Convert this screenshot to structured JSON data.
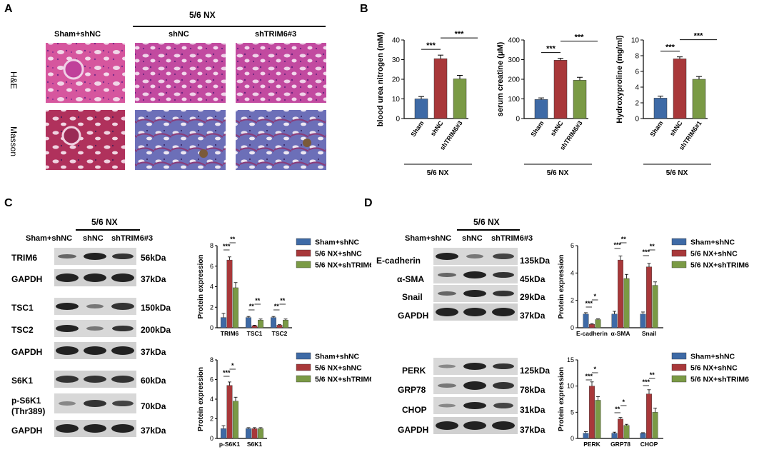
{
  "panels": {
    "A": {
      "letter": "A",
      "group_header": "5/6 NX",
      "columns": [
        "Sham+shNC",
        "shNC",
        "shTRIM6#3"
      ],
      "rows": [
        "H&E",
        "Masson"
      ]
    },
    "B": {
      "letter": "B",
      "sig": "***",
      "group_label": "5/6 NX"
    },
    "C": {
      "letter": "C",
      "group_header": "5/6 NX",
      "columns": [
        "Sham+shNC",
        "shNC",
        "shTRIM6#3"
      ],
      "blots_top": [
        {
          "name": "TRIM6",
          "kda": "56kDa"
        },
        {
          "name": "GAPDH",
          "kda": "37kDa"
        },
        {
          "name": "TSC1",
          "kda": "150kDa"
        },
        {
          "name": "TSC2",
          "kda": "200kDa"
        },
        {
          "name": "GAPDH",
          "kda": "37kDa"
        }
      ],
      "blots_bottom": [
        {
          "name": "S6K1",
          "kda": "60kDa"
        },
        {
          "name": "p-S6K1",
          "name2": "(Thr389)",
          "kda": "70kDa"
        },
        {
          "name": "GAPDH",
          "kda": "37kDa"
        }
      ]
    },
    "D": {
      "letter": "D",
      "group_header": "5/6 NX",
      "columns": [
        "Sham+shNC",
        "shNC",
        "shTRIM6#3"
      ],
      "blots_top": [
        {
          "name": "E-cadherin",
          "kda": "135kDa"
        },
        {
          "name": "α-SMA",
          "kda": "45kDa"
        },
        {
          "name": "Snail",
          "kda": "29kDa"
        },
        {
          "name": "GAPDH",
          "kda": "37kDa"
        }
      ],
      "blots_bottom": [
        {
          "name": "PERK",
          "kda": "125kDa"
        },
        {
          "name": "GRP78",
          "kda": "78kDa"
        },
        {
          "name": "CHOP",
          "kda": "31kDa"
        },
        {
          "name": "GAPDH",
          "kda": "37kDa"
        }
      ]
    }
  },
  "colors": {
    "blue": "#3e6aa6",
    "red": "#a8383a",
    "green": "#7a9a45"
  },
  "legend3": [
    "Sham+shNC",
    "5/6 NX+shNC",
    "5/6 NX+shTRIM6"
  ],
  "chart_data": [
    {
      "id": "b1",
      "type": "bar",
      "categories": [
        "Sham",
        "shNC",
        "shTRIM6#3"
      ],
      "values": [
        10,
        30.5,
        20.2
      ],
      "errors": [
        1.2,
        1.8,
        1.8
      ],
      "ylabel": "blood urea nitrogen (mM)",
      "ylim": [
        0,
        40
      ],
      "yticks": [
        "0",
        "10",
        "20",
        "30",
        "40"
      ],
      "group_label": "5/6 NX"
    },
    {
      "id": "b2",
      "type": "bar",
      "categories": [
        "Sham",
        "shNC",
        "shTRIM6#3"
      ],
      "values": [
        97,
        297,
        195
      ],
      "errors": [
        8,
        10,
        15
      ],
      "ylabel": "serum creatine (μM)",
      "ylim": [
        0,
        400
      ],
      "yticks": [
        "0",
        "100",
        "200",
        "300",
        "400"
      ],
      "group_label": "5/6 NX"
    },
    {
      "id": "b3",
      "type": "bar",
      "categories": [
        "Sham",
        "shNC",
        "shTRIM6#1"
      ],
      "values": [
        2.6,
        7.6,
        5.0
      ],
      "errors": [
        0.25,
        0.25,
        0.35
      ],
      "ylabel": "Hydroxyproline (mg/ml)",
      "ylim": [
        0,
        10
      ],
      "yticks": [
        "0",
        "2",
        "4",
        "6",
        "8",
        "10"
      ],
      "group_label": "5/6 NX"
    },
    {
      "id": "c1",
      "type": "bar",
      "categories": [
        "TRIM6",
        "TSC1",
        "TSC2"
      ],
      "ylabel": "Protein expression",
      "ylim": [
        0,
        8
      ],
      "yticks": [
        "0",
        "2",
        "4",
        "6",
        "8"
      ],
      "series": [
        {
          "name": "Sham+shNC",
          "values": [
            1.0,
            1.0,
            1.0
          ],
          "errors": [
            0.4,
            0.1,
            0.1
          ]
        },
        {
          "name": "5/6 NX+shNC",
          "values": [
            6.6,
            0.2,
            0.25
          ],
          "errors": [
            0.3,
            0.05,
            0.05
          ]
        },
        {
          "name": "5/6 NX+shTRIM6",
          "values": [
            3.9,
            0.75,
            0.75
          ],
          "errors": [
            0.5,
            0.1,
            0.1
          ]
        }
      ]
    },
    {
      "id": "c2",
      "type": "bar",
      "categories": [
        "p-S6K1",
        "S6K1"
      ],
      "ylabel": "Protein expression",
      "ylim": [
        0,
        8
      ],
      "yticks": [
        "0",
        "2",
        "4",
        "6",
        "8"
      ],
      "series": [
        {
          "name": "Sham+shNC",
          "values": [
            1.0,
            1.0
          ],
          "errors": [
            0.3,
            0.1
          ]
        },
        {
          "name": "5/6 NX+shNC",
          "values": [
            5.4,
            1.0
          ],
          "errors": [
            0.35,
            0.1
          ]
        },
        {
          "name": "5/6 NX+shTRIM6",
          "values": [
            3.8,
            1.0
          ],
          "errors": [
            0.4,
            0.1
          ]
        }
      ]
    },
    {
      "id": "d1",
      "type": "bar",
      "categories": [
        "E-cadherin",
        "α-SMA",
        "Snail"
      ],
      "ylabel": "Protein expression",
      "ylim": [
        0,
        6
      ],
      "yticks": [
        "0",
        "2",
        "4",
        "6"
      ],
      "series": [
        {
          "name": "Sham+shNC",
          "values": [
            1.0,
            1.0,
            1.0
          ],
          "errors": [
            0.1,
            0.2,
            0.15
          ]
        },
        {
          "name": "5/6 NX+shNC",
          "values": [
            0.25,
            4.95,
            4.45
          ],
          "errors": [
            0.05,
            0.3,
            0.25
          ]
        },
        {
          "name": "5/6 NX+shTRIM6",
          "values": [
            0.6,
            3.6,
            3.1
          ],
          "errors": [
            0.05,
            0.3,
            0.25
          ]
        }
      ]
    },
    {
      "id": "d2",
      "type": "bar",
      "categories": [
        "PERK",
        "GRP78",
        "CHOP"
      ],
      "ylabel": "Protein expression",
      "ylim": [
        0,
        15
      ],
      "yticks": [
        "0",
        "5",
        "10",
        "15"
      ],
      "series": [
        {
          "name": "Sham+shNC",
          "values": [
            1.0,
            1.0,
            1.0
          ],
          "errors": [
            0.3,
            0.2,
            0.1
          ]
        },
        {
          "name": "5/6 NX+shNC",
          "values": [
            10.0,
            3.7,
            8.5
          ],
          "errors": [
            0.8,
            0.3,
            0.8
          ]
        },
        {
          "name": "5/6 NX+shTRIM6",
          "values": [
            7.3,
            2.5,
            5.0
          ],
          "errors": [
            0.7,
            0.2,
            0.8
          ]
        }
      ]
    }
  ]
}
